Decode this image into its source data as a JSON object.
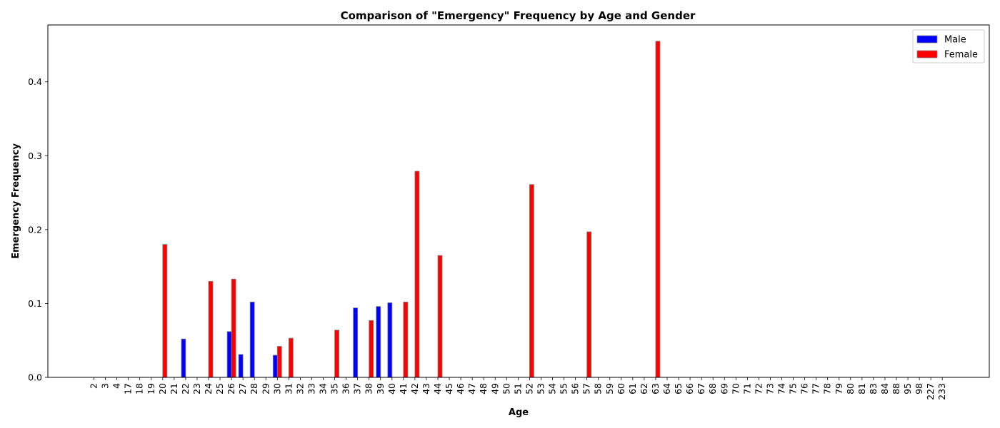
{
  "chart_data": {
    "type": "bar",
    "title": "Comparison of \"Emergency\" Frequency by Age and Gender",
    "xlabel": "Age",
    "ylabel": "Emergency Frequency",
    "ylim": [
      0,
      0.477
    ],
    "yticks": [
      0.0,
      0.1,
      0.2,
      0.3,
      0.4
    ],
    "ytick_labels": [
      "0.0",
      "0.1",
      "0.2",
      "0.3",
      "0.4"
    ],
    "grid": false,
    "legend_position": "top-right",
    "categories": [
      "2",
      "3",
      "4",
      "17",
      "18",
      "19",
      "20",
      "21",
      "22",
      "23",
      "24",
      "25",
      "26",
      "27",
      "28",
      "29",
      "30",
      "31",
      "32",
      "33",
      "34",
      "35",
      "36",
      "37",
      "38",
      "39",
      "40",
      "41",
      "42",
      "43",
      "44",
      "45",
      "46",
      "47",
      "48",
      "49",
      "50",
      "51",
      "52",
      "53",
      "54",
      "55",
      "56",
      "57",
      "58",
      "59",
      "60",
      "61",
      "62",
      "63",
      "64",
      "65",
      "66",
      "67",
      "68",
      "69",
      "70",
      "71",
      "72",
      "73",
      "74",
      "75",
      "76",
      "77",
      "78",
      "79",
      "80",
      "81",
      "83",
      "84",
      "88",
      "95",
      "98",
      "227",
      "233"
    ],
    "series": [
      {
        "name": "Male",
        "color": "#0000ff",
        "values": [
          0,
          0,
          0,
          0,
          0,
          0,
          0,
          0,
          0.052,
          0,
          0,
          0,
          0.062,
          0.031,
          0.102,
          0,
          0.03,
          0,
          0,
          0,
          0,
          0,
          0,
          0.094,
          0,
          0.096,
          0.101,
          0,
          0,
          0,
          0,
          0,
          0,
          0,
          0,
          0,
          0,
          0,
          0,
          0,
          0,
          0,
          0,
          0,
          0,
          0,
          0,
          0,
          0,
          0,
          0,
          0,
          0,
          0,
          0,
          0,
          0,
          0,
          0,
          0,
          0,
          0,
          0,
          0,
          0,
          0,
          0,
          0,
          0,
          0,
          0,
          0,
          0,
          0,
          0
        ]
      },
      {
        "name": "Female",
        "color": "#ff0000",
        "values": [
          0,
          0,
          0,
          0,
          0,
          0,
          0.18,
          0,
          0,
          0,
          0.13,
          0,
          0.133,
          0,
          0,
          0,
          0.042,
          0.053,
          0,
          0,
          0,
          0.064,
          0,
          0,
          0.077,
          0,
          0,
          0.102,
          0.279,
          0,
          0.165,
          0,
          0,
          0,
          0,
          0,
          0,
          0,
          0.261,
          0,
          0,
          0,
          0,
          0.197,
          0,
          0,
          0,
          0,
          0,
          0.455,
          0,
          0,
          0,
          0,
          0,
          0,
          0,
          0,
          0,
          0,
          0,
          0,
          0,
          0,
          0,
          0,
          0,
          0,
          0,
          0,
          0,
          0,
          0,
          0,
          0
        ]
      }
    ]
  }
}
